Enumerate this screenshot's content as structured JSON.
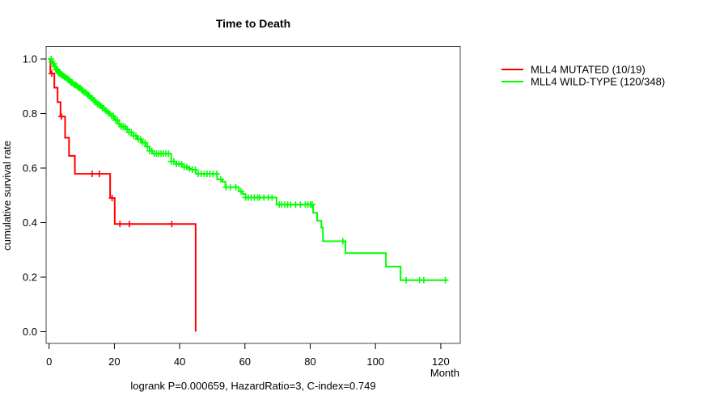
{
  "annotation": "logrank P=0.000659, HazardRatio=3, C-index=0.749",
  "axes": {
    "x_ticks": [
      "0",
      "20",
      "40",
      "60",
      "80",
      "100",
      "120"
    ],
    "y_ticks": [
      "0.0",
      "0.2",
      "0.4",
      "0.6",
      "0.8",
      "1.0"
    ],
    "x_unit_label": "Month",
    "y_axis_label": "cumulative survival rate"
  },
  "colors": {
    "mutated": "#ff0000",
    "wild_type": "#00ff00",
    "text": "#000000",
    "background": "#ffffff"
  },
  "chart_data": {
    "type": "line",
    "subtype": "kaplan-meier-step",
    "title": "Time to Death",
    "xlabel": "Month",
    "ylabel": "cumulative survival rate",
    "xlim": [
      0,
      127
    ],
    "ylim": [
      0.0,
      1.0
    ],
    "grid": false,
    "legend_position": "right-outside",
    "series": [
      {
        "name": "MLL4 MUTATED (10/19)",
        "color": "#ff0000",
        "n": 19,
        "events": 10,
        "steps": [
          [
            0,
            1.0
          ],
          [
            0.4,
            0.947
          ],
          [
            1.6,
            0.895
          ],
          [
            2.6,
            0.842
          ],
          [
            3.5,
            0.789
          ],
          [
            4.9,
            0.711
          ],
          [
            6.1,
            0.645
          ],
          [
            7.9,
            0.579
          ],
          [
            18.7,
            0.49
          ],
          [
            20.1,
            0.395
          ],
          [
            44.9,
            0.0
          ]
        ],
        "censor_times": [
          0.8,
          3.8,
          13.2,
          15.4,
          19.3,
          21.7,
          24.6,
          37.6
        ],
        "end_time": 44.9
      },
      {
        "name": "MLL4 WILD-TYPE (120/348)",
        "color": "#00ff00",
        "n": 348,
        "events": 120,
        "steps": [
          [
            0,
            1.0
          ],
          [
            0.7,
            0.991
          ],
          [
            1.2,
            0.982
          ],
          [
            1.7,
            0.972
          ],
          [
            2.1,
            0.962
          ],
          [
            2.5,
            0.956
          ],
          [
            3.0,
            0.948
          ],
          [
            3.6,
            0.943
          ],
          [
            4.2,
            0.938
          ],
          [
            4.8,
            0.933
          ],
          [
            5.4,
            0.927
          ],
          [
            6.0,
            0.92
          ],
          [
            6.6,
            0.914
          ],
          [
            7.2,
            0.908
          ],
          [
            7.8,
            0.904
          ],
          [
            8.4,
            0.899
          ],
          [
            9.0,
            0.894
          ],
          [
            9.6,
            0.889
          ],
          [
            10.2,
            0.883
          ],
          [
            10.8,
            0.877
          ],
          [
            11.4,
            0.871
          ],
          [
            12.0,
            0.864
          ],
          [
            12.7,
            0.856
          ],
          [
            13.4,
            0.848
          ],
          [
            14.1,
            0.841
          ],
          [
            14.8,
            0.834
          ],
          [
            15.5,
            0.828
          ],
          [
            16.2,
            0.82
          ],
          [
            16.9,
            0.812
          ],
          [
            17.6,
            0.806
          ],
          [
            18.3,
            0.8
          ],
          [
            19.0,
            0.791
          ],
          [
            20.0,
            0.776
          ],
          [
            21.0,
            0.762
          ],
          [
            22.0,
            0.752
          ],
          [
            23.4,
            0.742
          ],
          [
            24.5,
            0.731
          ],
          [
            25.9,
            0.718
          ],
          [
            27.0,
            0.706
          ],
          [
            28.3,
            0.693
          ],
          [
            29.5,
            0.679
          ],
          [
            30.8,
            0.663
          ],
          [
            31.6,
            0.653
          ],
          [
            37.4,
            0.624
          ],
          [
            39.0,
            0.615
          ],
          [
            40.7,
            0.604
          ],
          [
            42.5,
            0.598
          ],
          [
            43.2,
            0.594
          ],
          [
            44.9,
            0.579
          ],
          [
            51.5,
            0.559
          ],
          [
            53.1,
            0.55
          ],
          [
            54.0,
            0.53
          ],
          [
            58.1,
            0.515
          ],
          [
            59.3,
            0.505
          ],
          [
            60.2,
            0.492
          ],
          [
            69.7,
            0.466
          ],
          [
            80.9,
            0.436
          ],
          [
            82.1,
            0.407
          ],
          [
            83.4,
            0.382
          ],
          [
            83.9,
            0.332
          ],
          [
            90.8,
            0.288
          ],
          [
            103.2,
            0.239
          ],
          [
            107.7,
            0.189
          ]
        ],
        "censor_times": [
          0.6,
          0.9,
          1.2,
          1.5,
          1.8,
          2.1,
          2.4,
          2.7,
          3.0,
          3.3,
          3.6,
          3.9,
          4.2,
          4.5,
          4.8,
          5.1,
          5.5,
          5.9,
          6.3,
          6.7,
          7.1,
          7.5,
          7.9,
          8.3,
          8.7,
          9.1,
          9.5,
          9.9,
          10.3,
          10.8,
          11.3,
          11.8,
          12.3,
          12.8,
          13.3,
          13.8,
          14.3,
          14.8,
          15.3,
          15.8,
          16.3,
          16.8,
          17.3,
          17.9,
          18.5,
          19.1,
          19.7,
          20.3,
          20.9,
          21.5,
          22.1,
          22.7,
          23.3,
          23.9,
          24.5,
          25.2,
          25.9,
          26.6,
          27.3,
          28.0,
          28.7,
          29.4,
          30.1,
          30.8,
          31.5,
          32.2,
          32.9,
          33.6,
          34.3,
          35.0,
          35.8,
          36.6,
          37.4,
          38.2,
          39.0,
          39.8,
          40.6,
          41.4,
          42.2,
          43.0,
          43.9,
          44.8,
          45.7,
          46.6,
          47.5,
          48.4,
          49.3,
          50.2,
          51.4,
          52.6,
          54.2,
          55.6,
          57.2,
          58.8,
          60.2,
          61.0,
          61.9,
          62.9,
          63.9,
          64.5,
          65.8,
          67.2,
          68.3,
          70.5,
          71.3,
          72.2,
          73.1,
          74.0,
          75.5,
          77.0,
          78.5,
          79.3,
          80.1,
          80.6,
          90.0,
          109.4,
          113.5,
          114.8,
          121.4
        ],
        "end_time": 122
      }
    ]
  }
}
